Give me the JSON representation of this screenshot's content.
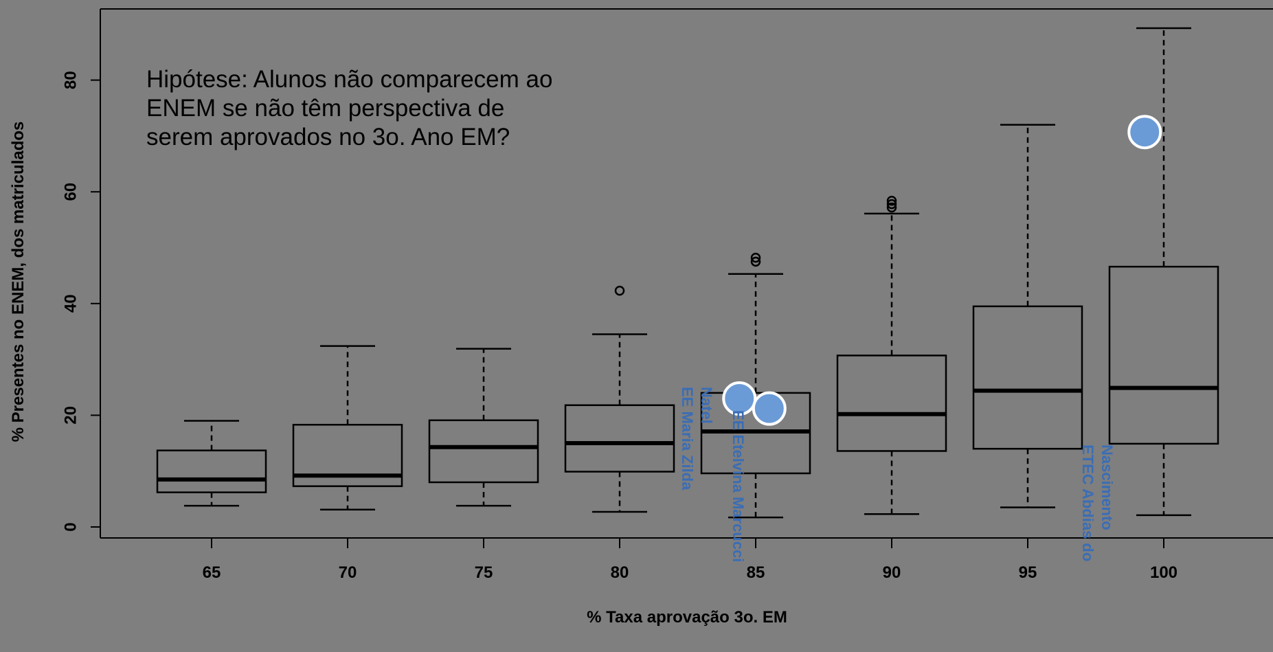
{
  "chart_data": {
    "type": "boxplot",
    "xlabel": "% Taxa aprovação 3o. EM",
    "ylabel": "% Presentes no ENEM, dos matriculados",
    "ylim": [
      -1,
      93
    ],
    "yticks": [
      0,
      20,
      40,
      60,
      80
    ],
    "categories": [
      "65",
      "70",
      "75",
      "80",
      "85",
      "90",
      "95",
      "100"
    ],
    "boxes": [
      {
        "category": "65",
        "whisker_low": 3.8,
        "q1": 6.2,
        "median": 8.5,
        "q3": 13.7,
        "whisker_high": 19.0,
        "outliers": []
      },
      {
        "category": "70",
        "whisker_low": 3.1,
        "q1": 7.3,
        "median": 9.2,
        "q3": 18.3,
        "whisker_high": 32.4,
        "outliers": []
      },
      {
        "category": "75",
        "whisker_low": 3.8,
        "q1": 8.0,
        "median": 14.3,
        "q3": 19.1,
        "whisker_high": 31.9,
        "outliers": []
      },
      {
        "category": "80",
        "whisker_low": 2.7,
        "q1": 9.9,
        "median": 15.0,
        "q3": 21.8,
        "whisker_high": 34.5,
        "outliers": [
          42.3
        ]
      },
      {
        "category": "85",
        "whisker_low": 1.7,
        "q1": 9.6,
        "median": 17.1,
        "q3": 24.0,
        "whisker_high": 45.3,
        "outliers": [
          47.5,
          48.2
        ]
      },
      {
        "category": "90",
        "whisker_low": 2.3,
        "q1": 13.6,
        "median": 20.2,
        "q3": 30.7,
        "whisker_high": 56.1,
        "outliers": [
          57.2,
          57.8,
          58.4
        ]
      },
      {
        "category": "95",
        "whisker_low": 3.5,
        "q1": 14.0,
        "median": 24.4,
        "q3": 39.5,
        "whisker_high": 72.0,
        "outliers": []
      },
      {
        "category": "100",
        "whisker_low": 2.1,
        "q1": 14.9,
        "median": 24.9,
        "q3": 46.6,
        "whisker_high": 89.3,
        "outliers": []
      }
    ],
    "highlights": [
      {
        "x": 84.4,
        "y": 23.0,
        "label": [
          "EE Maria Zilda",
          "Natel"
        ]
      },
      {
        "x": 85.5,
        "y": 21.2,
        "label": [
          "EE Etelvina Marcucci"
        ]
      },
      {
        "x": 99.3,
        "y": 70.7,
        "label": [
          "ETEC Abdias do",
          "Nascimento"
        ]
      }
    ],
    "annotation": [
      "Hipótese: Alunos não comparecem ao",
      "ENEM se não têm perspectiva de",
      "serem aprovados no 3o. Ano EM?"
    ]
  },
  "colors": {
    "background": "#7f7f7f",
    "highlight_fill": "#6b9bd6",
    "highlight_stroke": "#ffffff",
    "label": "#3a6db5"
  }
}
